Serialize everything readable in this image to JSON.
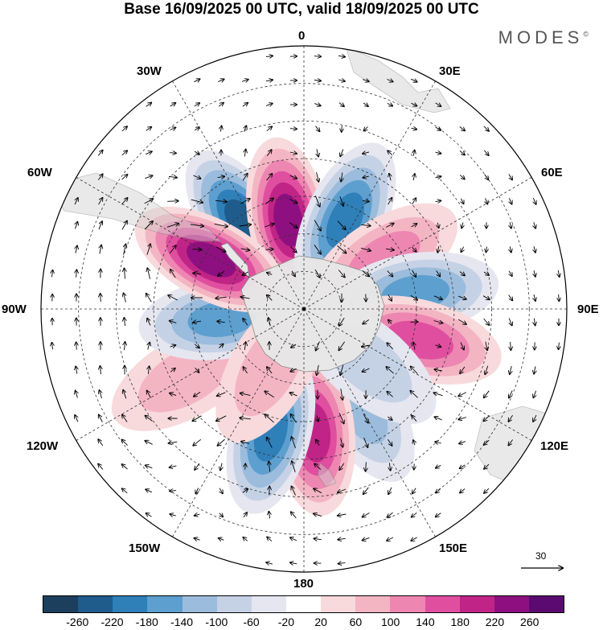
{
  "title": "Base 16/09/2025 00 UTC, valid 18/09/2025 00 UTC",
  "brand": "MODES",
  "brand_mark": "©",
  "longitude_labels": {
    "n0": "0",
    "n30e": "30E",
    "n60e": "60E",
    "n90e": "90E",
    "n120e": "120E",
    "n150e": "150E",
    "n180": "180",
    "n150w": "150W",
    "n120w": "120W",
    "n90w": "90W",
    "n60w": "60W",
    "n30w": "30W"
  },
  "vector_scale": {
    "value": "30"
  },
  "colorbar": {
    "colors": [
      "#1d3f5e",
      "#1f5c8c",
      "#2f7fb8",
      "#5d9fcf",
      "#9bbcdc",
      "#c5d2e6",
      "#e6e6f0",
      "#ffffff",
      "#f8dadc",
      "#f4b5c3",
      "#ee86b2",
      "#e04f9f",
      "#c02486",
      "#8e1080",
      "#5a0a70"
    ],
    "ticks": [
      "-260",
      "-220",
      "-180",
      "-140",
      "-100",
      "-60",
      "-20",
      "20",
      "60",
      "100",
      "140",
      "180",
      "220",
      "260"
    ]
  },
  "anomaly_centers": [
    {
      "id": "c1",
      "lon": -35,
      "colat": 28,
      "value": -240
    },
    {
      "id": "c2",
      "lon": -10,
      "colat": 24,
      "value": 220
    },
    {
      "id": "c3",
      "lon": 25,
      "colat": 26,
      "value": -200
    },
    {
      "id": "c4",
      "lon": 58,
      "colat": 25,
      "value": 130
    },
    {
      "id": "c5",
      "lon": 82,
      "colat": 30,
      "value": -150
    },
    {
      "id": "c6",
      "lon": 105,
      "colat": 32,
      "value": 140
    },
    {
      "id": "c7",
      "lon": 150,
      "colat": 30,
      "value": -120
    },
    {
      "id": "c8",
      "lon": 175,
      "colat": 33,
      "value": 210
    },
    {
      "id": "c9",
      "lon": -165,
      "colat": 34,
      "value": -190
    },
    {
      "id": "c10",
      "lon": -120,
      "colat": 36,
      "value": 80
    },
    {
      "id": "c11",
      "lon": -97,
      "colat": 22,
      "value": -150
    },
    {
      "id": "c12",
      "lon": -62,
      "colat": 28,
      "value": 250
    },
    {
      "id": "c13",
      "lon": -150,
      "colat": 18,
      "value": 90
    },
    {
      "id": "c14",
      "lon": 130,
      "colat": 22,
      "value": -60
    }
  ]
}
